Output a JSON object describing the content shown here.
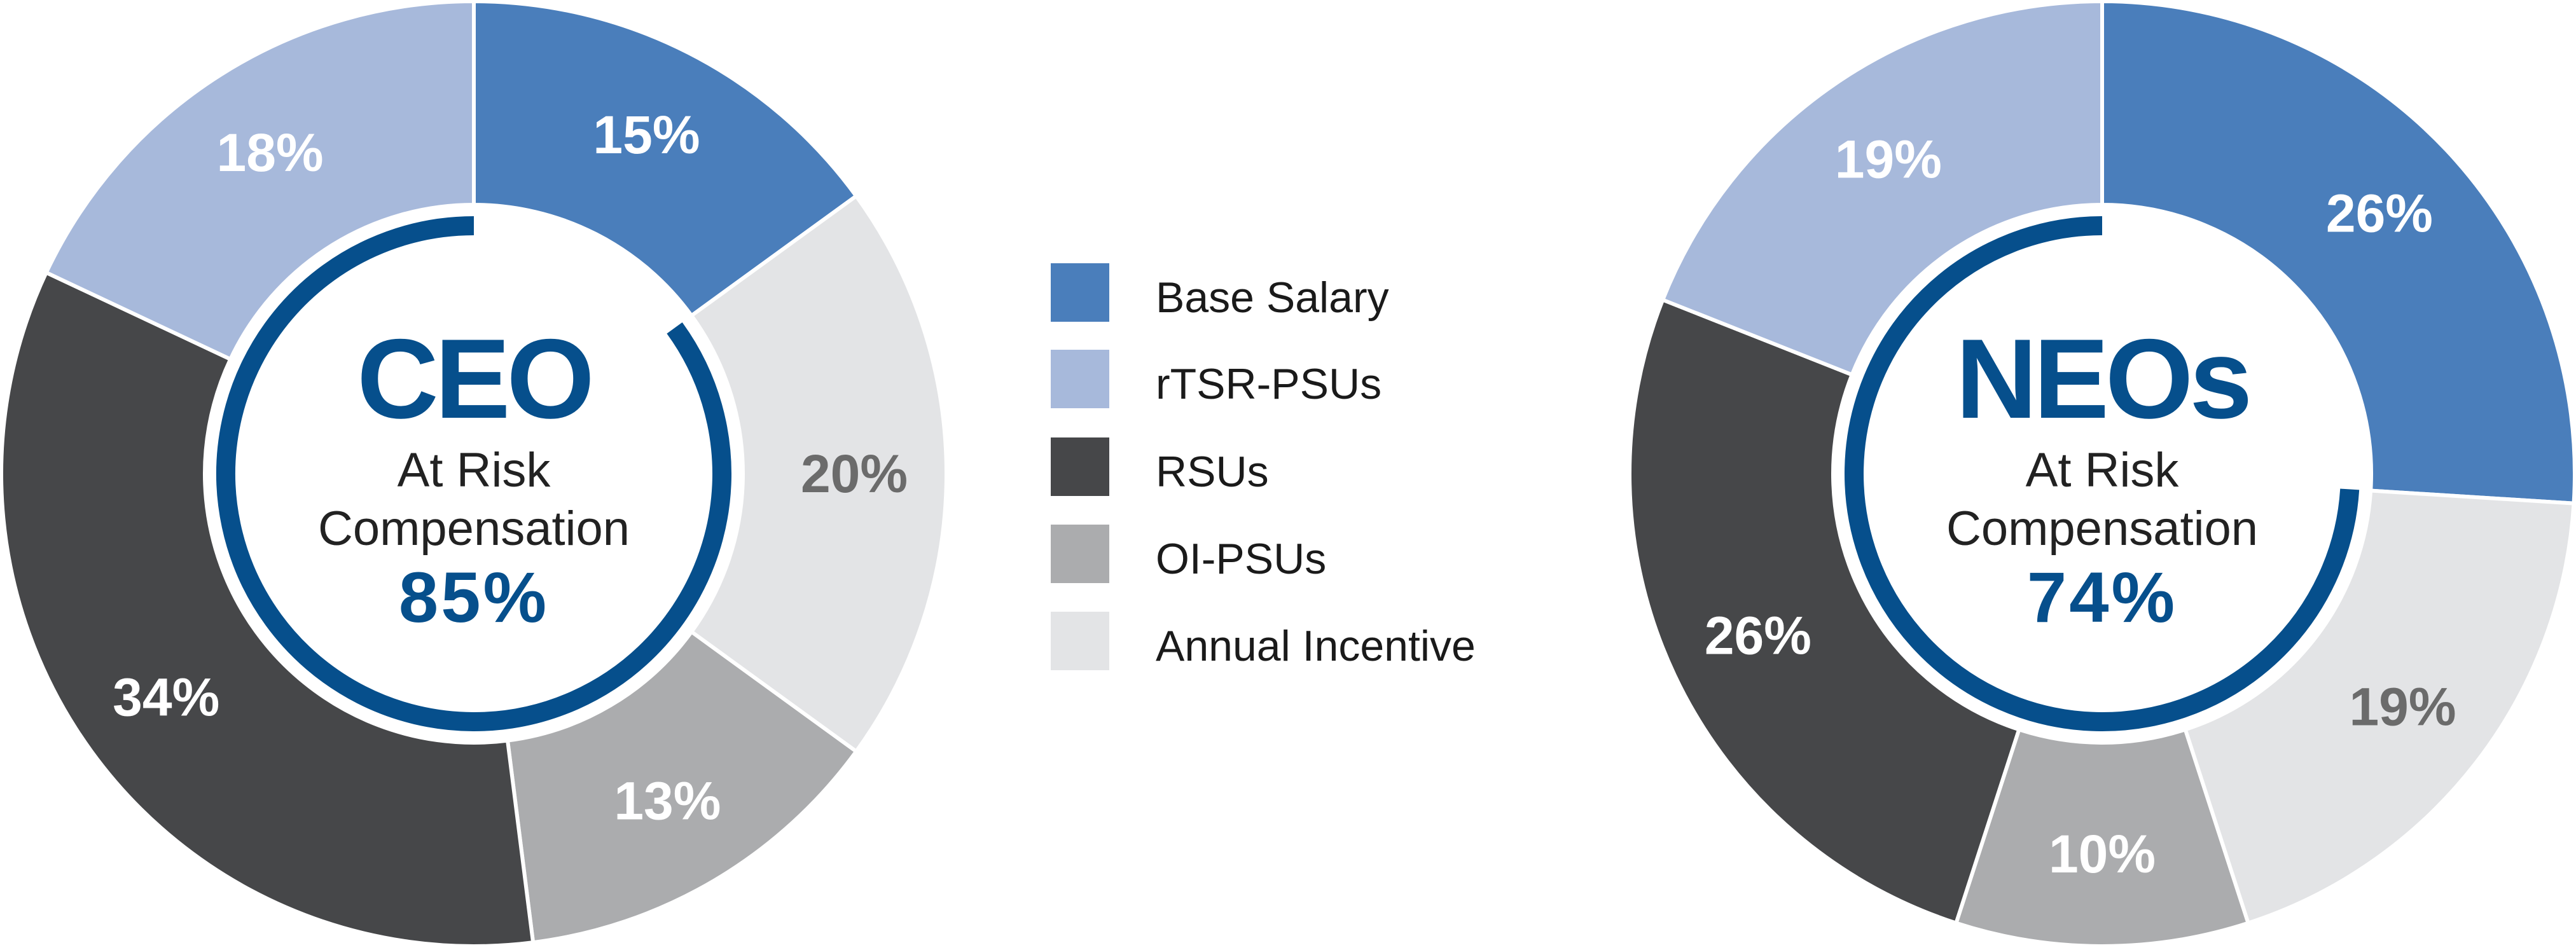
{
  "colors": {
    "accent": "#064f8c",
    "separator": "#ffffff",
    "series": {
      "Base Salary": "#4a7ebb",
      "rTSR-PSUs": "#a7b9db",
      "RSUs": "#464749",
      "OI-PSUs": "#abacae",
      "Annual Incentive": "#e3e4e6"
    },
    "label_light": "#ffffff",
    "label_dark": "#6b6b6b"
  },
  "legend": [
    "Base Salary",
    "rTSR-PSUs",
    "RSUs",
    "OI-PSUs",
    "Annual Incentive"
  ],
  "chart_data": [
    {
      "type": "pie",
      "style": "donut",
      "title": "CEO",
      "subtitle_line1": "At Risk",
      "subtitle_line2": "Compensation",
      "at_risk_value": "85%",
      "at_risk_percent": 85,
      "start": "top, clockwise",
      "slices": [
        {
          "name": "Base Salary",
          "value": 15,
          "label": "15%"
        },
        {
          "name": "Annual Incentive",
          "value": 20,
          "label": "20%"
        },
        {
          "name": "OI-PSUs",
          "value": 13,
          "label": "13%"
        },
        {
          "name": "RSUs",
          "value": 34,
          "label": "34%"
        },
        {
          "name": "rTSR-PSUs",
          "value": 18,
          "label": "18%"
        }
      ]
    },
    {
      "type": "pie",
      "style": "donut",
      "title": "NEOs",
      "subtitle_line1": "At Risk",
      "subtitle_line2": "Compensation",
      "at_risk_value": "74%",
      "at_risk_percent": 74,
      "start": "top, clockwise",
      "slices": [
        {
          "name": "Base Salary",
          "value": 26,
          "label": "26%"
        },
        {
          "name": "Annual Incentive",
          "value": 19,
          "label": "19%"
        },
        {
          "name": "OI-PSUs",
          "value": 10,
          "label": "10%"
        },
        {
          "name": "RSUs",
          "value": 26,
          "label": "26%"
        },
        {
          "name": "rTSR-PSUs",
          "value": 19,
          "label": "19%"
        }
      ]
    }
  ]
}
